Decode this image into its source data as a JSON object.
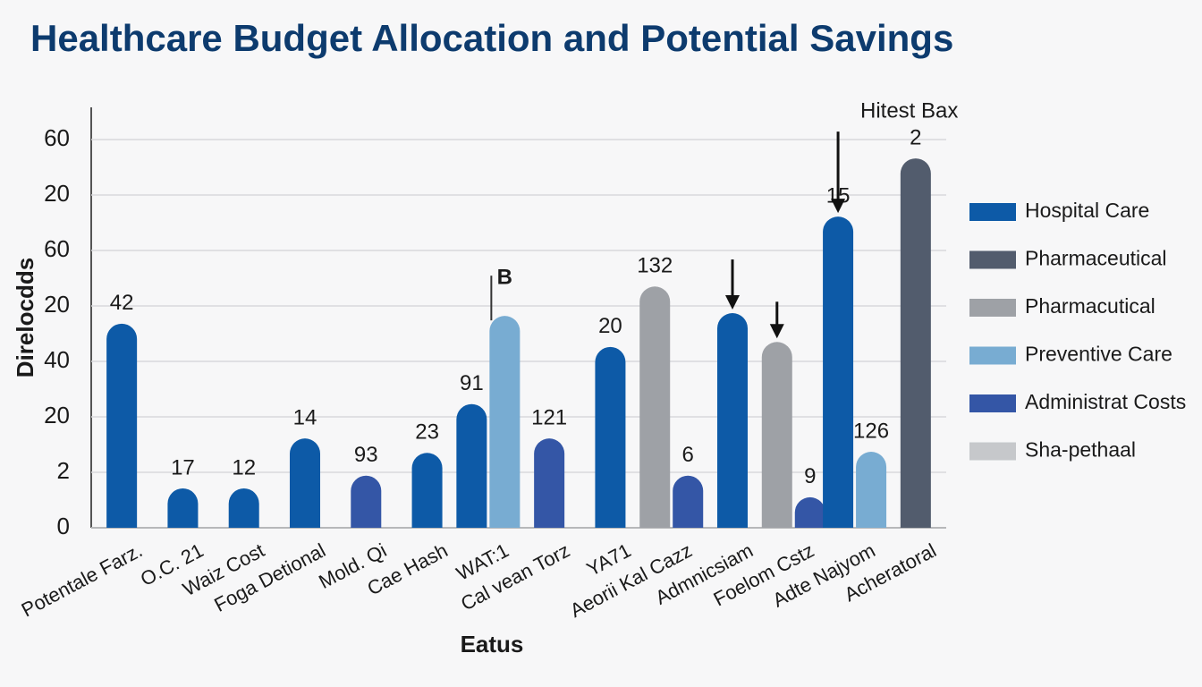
{
  "chart_data": {
    "type": "bar",
    "title": "Healthcare Budget Allocation and Potential Savings",
    "y_label": "Direlocdds",
    "x_label": "Eatus",
    "annotation": "Hitest Bax",
    "categories": [
      "Potentale Farz.",
      "O.C. 21",
      "Waiz Cost",
      "Foga Detional",
      "Mold. Qi",
      "Cae Hash",
      "WAT:1",
      "Cal vean Torz",
      "YA71",
      "Aeorii Kal Cazz",
      "Admnicsiam",
      "Foelom Cstz",
      "Adte Najyom",
      "Acheratoral"
    ],
    "series": [
      {
        "name": "Hospital Care",
        "color": "#0d5aa7",
        "values": [
          3.68,
          0.71,
          0.71,
          1.61,
          null,
          1.35,
          2.23,
          null,
          3.26,
          null,
          3.87,
          null,
          5.61,
          null
        ],
        "annotations": [
          "42",
          "17",
          "12",
          "14",
          null,
          "23",
          "91",
          null,
          "20",
          null,
          null,
          null,
          "15",
          null
        ]
      },
      {
        "name": "Pharmaceutical",
        "color": "#525c6d",
        "values": [
          null,
          null,
          null,
          null,
          null,
          null,
          null,
          null,
          null,
          null,
          null,
          null,
          null,
          6.66
        ],
        "annotations": [
          null,
          null,
          null,
          null,
          null,
          null,
          null,
          null,
          null,
          null,
          null,
          null,
          null,
          "2"
        ]
      },
      {
        "name": "Pharmacutical",
        "color": "#9ea1a6",
        "values": [
          null,
          null,
          null,
          null,
          null,
          null,
          null,
          null,
          null,
          4.35,
          null,
          3.35,
          null,
          null
        ],
        "annotations": [
          null,
          null,
          null,
          null,
          null,
          null,
          null,
          null,
          null,
          "132",
          null,
          null,
          null,
          null
        ]
      },
      {
        "name": "Preventive Care",
        "color": "#78acd2",
        "values": [
          null,
          null,
          null,
          null,
          null,
          null,
          3.82,
          null,
          null,
          null,
          null,
          null,
          1.37,
          null
        ],
        "annotations": [
          null,
          null,
          null,
          null,
          null,
          null,
          "B",
          null,
          null,
          null,
          null,
          null,
          "126",
          null
        ]
      },
      {
        "name": "Administrat Costs",
        "color": "#3456a6",
        "values": [
          null,
          null,
          null,
          null,
          0.94,
          null,
          null,
          1.61,
          null,
          0.94,
          null,
          0.55,
          null,
          null
        ],
        "annotations": [
          null,
          null,
          null,
          null,
          "93",
          null,
          null,
          "121",
          null,
          "6",
          null,
          "9",
          null,
          null
        ]
      },
      {
        "name": "Sha-pethaal",
        "color": "#c6c8cb",
        "values": [
          null,
          null,
          null,
          null,
          null,
          null,
          null,
          null,
          null,
          null,
          null,
          null,
          null,
          null
        ],
        "annotations": [
          null,
          null,
          null,
          null,
          null,
          null,
          null,
          null,
          null,
          null,
          null,
          null,
          null,
          null
        ]
      }
    ],
    "ylim": [
      0,
      7.5
    ],
    "yticks": [
      0,
      {
        "value": 1,
        "label": "2"
      },
      {
        "value": 2,
        "label": "20"
      },
      {
        "value": 3,
        "label": "40"
      },
      {
        "value": 4,
        "label": "20"
      },
      {
        "value": 5,
        "label": "60"
      },
      {
        "value": 6,
        "label": "20"
      },
      {
        "value": 7,
        "label": "60"
      }
    ],
    "grid": true
  }
}
